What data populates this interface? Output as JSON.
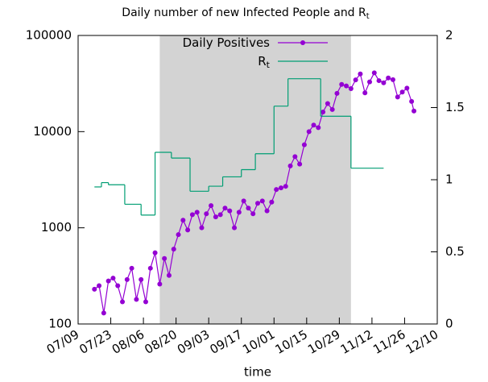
{
  "chart_data": {
    "type": "line",
    "title": "Daily number of new Infected People and R",
    "title_subscript": "t",
    "xlabel": "time",
    "xlim": [
      "07/09",
      "12/10"
    ],
    "xticks": [
      "07/09",
      "07/23",
      "08/06",
      "08/20",
      "09/03",
      "09/17",
      "10/01",
      "10/15",
      "10/29",
      "11/12",
      "11/26",
      "12/10"
    ],
    "ylim": [
      100,
      100000
    ],
    "yticks": [
      100,
      1000,
      10000,
      100000
    ],
    "yscale": "log",
    "y2lim": [
      0,
      2
    ],
    "y2ticks": [
      0,
      0.5,
      1,
      1.5,
      2
    ],
    "shaded_range": [
      "08/13",
      "11/03"
    ],
    "shade_color": "#d3d3d3",
    "legend": "top",
    "series": [
      {
        "name": "Daily Positives",
        "color": "#9400d3",
        "style": "linespoints",
        "x": [
          "07/16",
          "07/18",
          "07/20",
          "07/22",
          "07/24",
          "07/26",
          "07/28",
          "07/30",
          "08/01",
          "08/03",
          "08/05",
          "08/07",
          "08/09",
          "08/11",
          "08/13",
          "08/15",
          "08/17",
          "08/19",
          "08/21",
          "08/23",
          "08/25",
          "08/27",
          "08/29",
          "08/31",
          "09/02",
          "09/04",
          "09/06",
          "09/08",
          "09/10",
          "09/12",
          "09/14",
          "09/16",
          "09/18",
          "09/20",
          "09/22",
          "09/24",
          "09/26",
          "09/28",
          "09/30",
          "10/02",
          "10/04",
          "10/06",
          "10/08",
          "10/10",
          "10/12",
          "10/14",
          "10/16",
          "10/18",
          "10/20",
          "10/22",
          "10/24",
          "10/26",
          "10/28",
          "10/30",
          "11/01",
          "11/03",
          "11/05",
          "11/07",
          "11/09",
          "11/11",
          "11/13",
          "11/15",
          "11/17",
          "11/19",
          "11/21",
          "11/23",
          "11/25",
          "11/27",
          "11/29",
          "11/30"
        ],
        "values": [
          230,
          250,
          130,
          280,
          300,
          250,
          170,
          290,
          380,
          180,
          290,
          170,
          380,
          550,
          260,
          480,
          320,
          600,
          850,
          1200,
          950,
          1370,
          1450,
          1000,
          1400,
          1700,
          1300,
          1370,
          1600,
          1500,
          1000,
          1450,
          1900,
          1600,
          1400,
          1800,
          1900,
          1500,
          1850,
          2500,
          2600,
          2700,
          4400,
          5500,
          4600,
          7300,
          10000,
          11700,
          11000,
          16000,
          19600,
          17000,
          25000,
          31000,
          29900,
          28000,
          34500,
          39800,
          25300,
          32900,
          40900,
          33900,
          32200,
          36100,
          34700,
          22900,
          25800,
          28300,
          20600,
          16400
        ]
      },
      {
        "name": "R",
        "name_subscript": "t",
        "color": "#009e73",
        "style": "steps",
        "axis": "y2",
        "x": [
          "07/16",
          "07/19",
          "07/22",
          "07/29",
          "08/05",
          "08/11",
          "08/18",
          "08/26",
          "09/03",
          "09/09",
          "09/17",
          "09/23",
          "10/01",
          "10/07",
          "10/21",
          "11/03",
          "11/17"
        ],
        "values": [
          0.95,
          0.98,
          0.965,
          0.83,
          0.755,
          1.19,
          1.15,
          0.92,
          0.955,
          1.02,
          1.07,
          1.18,
          1.51,
          1.7,
          1.44,
          1.08,
          1.08
        ]
      }
    ]
  }
}
